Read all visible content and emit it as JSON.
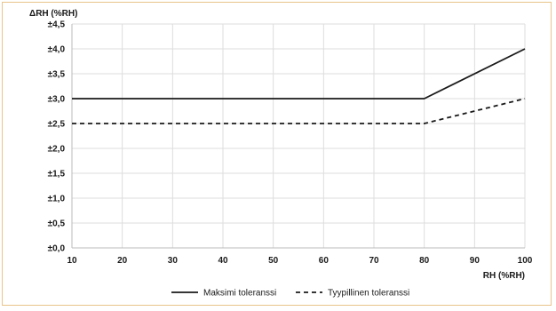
{
  "chart_data": {
    "type": "line",
    "title": "",
    "ylabel": "ΔRH (%RH)",
    "xlabel": "RH (%RH)",
    "xlim": [
      10,
      100
    ],
    "ylim": [
      0,
      4.5
    ],
    "x_ticks": [
      10,
      20,
      30,
      40,
      50,
      60,
      70,
      80,
      90,
      100
    ],
    "x_tick_labels": [
      "10",
      "20",
      "30",
      "40",
      "50",
      "60",
      "70",
      "80",
      "90",
      "100"
    ],
    "y_ticks": [
      0,
      0.5,
      1.0,
      1.5,
      2.0,
      2.5,
      3.0,
      3.5,
      4.0,
      4.5
    ],
    "y_tick_labels": [
      "±0,0",
      "±0,5",
      "±1,0",
      "±1,5",
      "±2,0",
      "±2,5",
      "±3,0",
      "±3,5",
      "±4,0",
      "±4,5"
    ],
    "grid": true,
    "legend": "bottom",
    "series": [
      {
        "name": "Maksimi toleranssi",
        "style": "solid",
        "color": "#1a1a1a",
        "x": [
          10,
          80,
          100
        ],
        "y": [
          3.0,
          3.0,
          4.0
        ]
      },
      {
        "name": "Tyypillinen toleranssi",
        "style": "dashed",
        "color": "#1a1a1a",
        "x": [
          10,
          80,
          100
        ],
        "y": [
          2.5,
          2.5,
          3.0
        ]
      }
    ],
    "colors": {
      "frame_border": "#e9c48a",
      "grid": "#dddddd",
      "axis": "#bbbbbb",
      "text": "#1a1a1a"
    }
  }
}
